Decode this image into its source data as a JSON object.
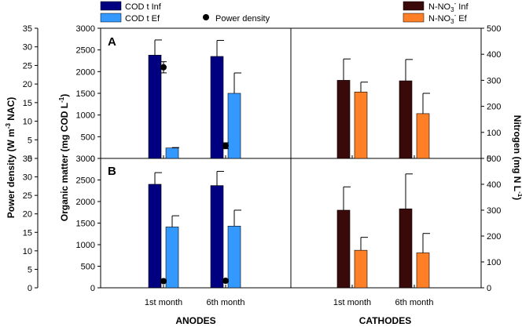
{
  "chart_data": {
    "type": "bar",
    "title": "",
    "legend": {
      "anode_items": [
        {
          "key": "cod_inf",
          "label": "COD t Inf",
          "color": "#000080"
        },
        {
          "key": "cod_ef",
          "label": "COD t Ef",
          "color": "#3399ff"
        },
        {
          "key": "power",
          "label": "Power density",
          "color": "#000000"
        }
      ],
      "cathode_items": [
        {
          "key": "n_inf",
          "label_pre": "N-NO",
          "label_sub": "3",
          "label_sup": "-",
          "label_post": " Inf",
          "color": "#3a0a0a"
        },
        {
          "key": "n_ef",
          "label_pre": "N-NO",
          "label_sub": "3",
          "label_sup": "-",
          "label_post": " Ef",
          "color": "#ff7f27"
        }
      ]
    },
    "axes": {
      "power": {
        "label_pre": "Power density (W m",
        "label_sup": "-3",
        "label_post": " NAC)",
        "range": [
          0,
          35
        ],
        "ticks": [
          0,
          5,
          10,
          15,
          20,
          25,
          30,
          35
        ]
      },
      "organic": {
        "label_pre": "Organic matter (mg COD L",
        "label_sup": "-1",
        "label_post": ")",
        "range": [
          0,
          3000
        ],
        "ticks": [
          0,
          500,
          1000,
          1500,
          2000,
          2500,
          3000
        ]
      },
      "nitrogen": {
        "label_pre": "Nitrogen (mg N L",
        "label_sup": "-1",
        "label_post": ")",
        "range": [
          0,
          500
        ],
        "ticks": [
          0,
          100,
          200,
          300,
          400,
          500
        ]
      }
    },
    "categories": [
      "1st month",
      "6th month"
    ],
    "section_labels": {
      "anodes": "ANODES",
      "cathodes": "CATHODES"
    },
    "panels": [
      {
        "label": "A",
        "anode_series": [
          {
            "key": "cod_inf",
            "values": [
              2380,
              2350
            ],
            "errors": [
              350,
              370
            ]
          },
          {
            "key": "cod_ef",
            "values": [
              240,
              1500
            ],
            "errors": [
              10,
              470
            ]
          }
        ],
        "power_density": {
          "values": [
            24.5,
            3.4
          ],
          "errors": [
            1.5,
            0.8
          ]
        },
        "cathode_series": [
          {
            "key": "n_inf",
            "values": [
              300,
              298
            ],
            "errors": [
              82,
              82
            ]
          },
          {
            "key": "n_ef",
            "values": [
              255,
              172
            ],
            "errors": [
              38,
              78
            ]
          }
        ]
      },
      {
        "label": "B",
        "anode_series": [
          {
            "key": "cod_inf",
            "values": [
              2400,
              2370
            ],
            "errors": [
              270,
              330
            ]
          },
          {
            "key": "cod_ef",
            "values": [
              1410,
              1430
            ],
            "errors": [
              260,
              370
            ]
          }
        ],
        "power_density": {
          "values": [
            1.8,
            1.9
          ],
          "errors": [
            0.3,
            0.3
          ]
        },
        "cathode_series": [
          {
            "key": "n_inf",
            "values": [
              300,
              305
            ],
            "errors": [
              90,
              135
            ]
          },
          {
            "key": "n_ef",
            "values": [
              145,
              135
            ],
            "errors": [
              50,
              75
            ]
          }
        ]
      }
    ]
  }
}
